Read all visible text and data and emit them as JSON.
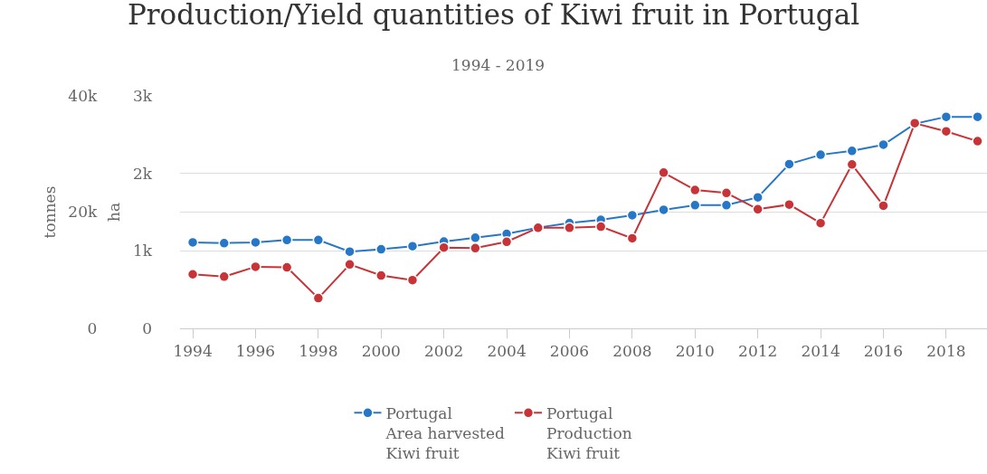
{
  "chart_data": {
    "type": "line",
    "title": "Production/Yield quantities of Kiwi fruit in Portugal",
    "subtitle": "1994 - 2019",
    "ylabel": "ha",
    "y2label": "tonnes",
    "x": [
      1994,
      1995,
      1996,
      1997,
      1998,
      1999,
      2000,
      2001,
      2002,
      2003,
      2004,
      2005,
      2006,
      2007,
      2008,
      2009,
      2010,
      2011,
      2012,
      2013,
      2014,
      2015,
      2016,
      2017,
      2018,
      2019
    ],
    "series": [
      {
        "name": "Portugal\nArea harvested\nKiwi fruit",
        "color": "#2677c7",
        "values": [
          1110,
          1100,
          1110,
          1140,
          1140,
          990,
          1020,
          1060,
          1120,
          1170,
          1220,
          1300,
          1360,
          1400,
          1460,
          1530,
          1590,
          1590,
          1690,
          2120,
          2240,
          2290,
          2370,
          2640,
          2730,
          2730
        ]
      },
      {
        "name": "Portugal\nProduction\nKiwi fruit",
        "color": "#c73336",
        "axis": "y2",
        "values": [
          9300,
          8900,
          10600,
          10500,
          5200,
          11000,
          9100,
          8300,
          13900,
          13800,
          14900,
          17300,
          17300,
          17500,
          15500,
          26800,
          23800,
          23300,
          20500,
          21300,
          18100,
          28200,
          21100,
          35300,
          33900,
          32200
        ]
      }
    ],
    "xlim": [
      1993.6,
      2019.3
    ],
    "xticks": [
      1994,
      1996,
      1998,
      2000,
      2002,
      2004,
      2006,
      2008,
      2010,
      2012,
      2014,
      2016,
      2018
    ],
    "ylim": [
      0,
      3000
    ],
    "yticks": [
      0,
      {
        "value": 1000,
        "label": "1k"
      },
      {
        "value": 2000,
        "label": "2k"
      },
      {
        "value": 3000,
        "label": "3k"
      }
    ],
    "y2lim": [
      0,
      40000
    ],
    "y2ticks": [
      0,
      {
        "value": 20000,
        "label": "20k"
      },
      {
        "value": 40000,
        "label": "40k"
      }
    ],
    "grid": "y",
    "legend": "bottom",
    "marker": "circle",
    "line_style": "solid"
  }
}
